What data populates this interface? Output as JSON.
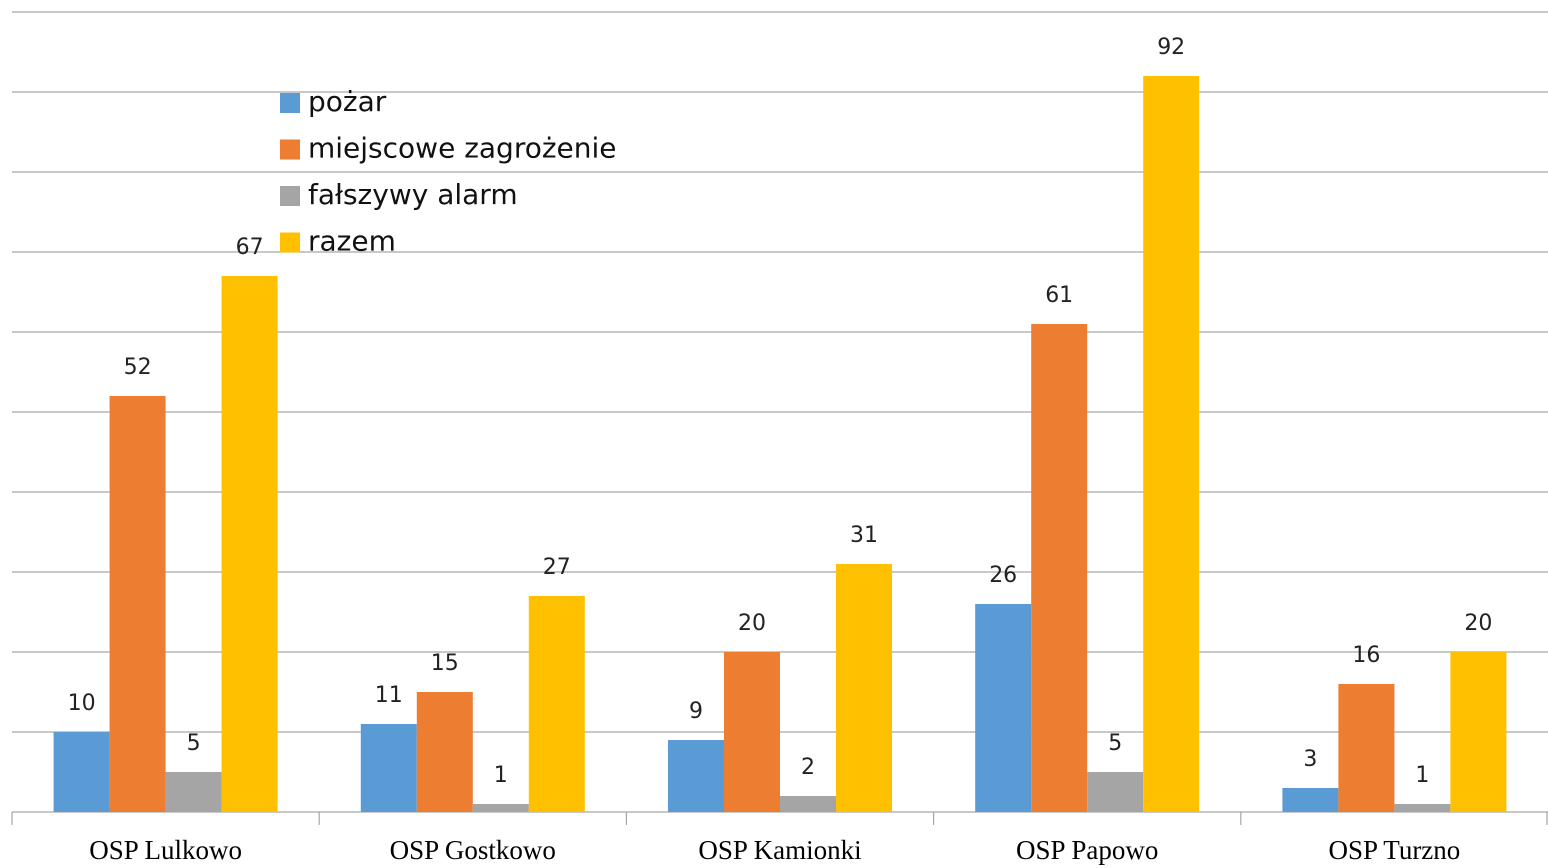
{
  "chart_data": {
    "type": "bar",
    "categories": [
      "OSP Lulkowo",
      "OSP Gostkowo",
      "OSP Kamionki",
      "OSP Papowo",
      "OSP Turzno"
    ],
    "series": [
      {
        "name": "pożar",
        "color": "#5b9bd5",
        "values": [
          10,
          11,
          9,
          26,
          3
        ]
      },
      {
        "name": "miejscowe zagrożenie",
        "color": "#ed7d31",
        "values": [
          52,
          15,
          20,
          61,
          16
        ]
      },
      {
        "name": "fałszywy alarm",
        "color": "#a5a5a5",
        "values": [
          5,
          1,
          2,
          5,
          1
        ]
      },
      {
        "name": "razem",
        "color": "#ffc000",
        "values": [
          67,
          27,
          31,
          92,
          20
        ]
      }
    ],
    "ylim": [
      0,
      100
    ],
    "yticks": [
      0,
      10,
      20,
      30,
      40,
      50,
      60,
      70,
      80,
      90,
      100
    ],
    "grid": true
  }
}
